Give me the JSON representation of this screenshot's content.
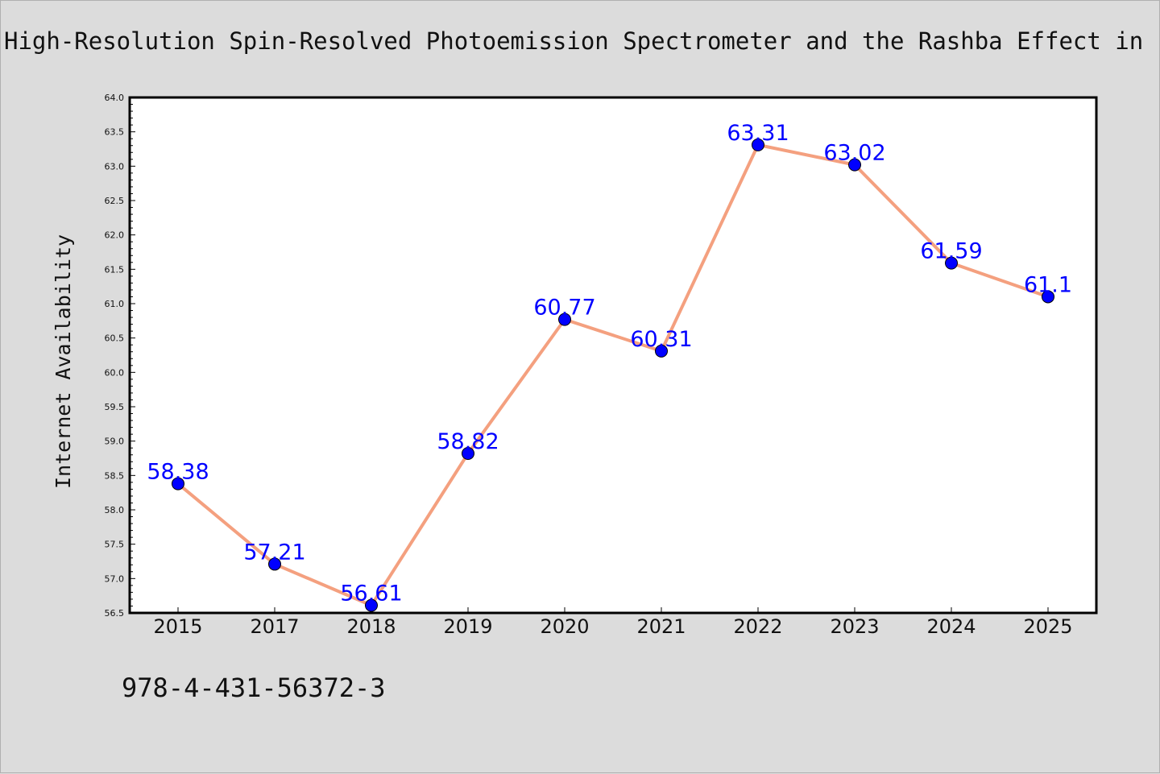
{
  "title": "High-Resolution Spin-Resolved Photoemission Spectrometer and the Rashba Effect in",
  "isbn": "978-4-431-56372-3",
  "colors": {
    "background": "#dcdcdc",
    "plot_background": "#ffffff",
    "line": "#f4a07f",
    "marker": "#0000ff",
    "data_label": "#0000ff"
  },
  "chart_data": {
    "type": "line",
    "title": "High-Resolution Spin-Resolved Photoemission Spectrometer and the Rashba Effect in",
    "xlabel": "",
    "ylabel": "Internet Availability",
    "categories": [
      "2015",
      "2017",
      "2018",
      "2019",
      "2020",
      "2021",
      "2022",
      "2023",
      "2024",
      "2025"
    ],
    "series": [
      {
        "values": [
          58.38,
          57.21,
          56.61,
          58.82,
          60.77,
          60.31,
          63.31,
          63.02,
          61.59,
          61.1
        ],
        "labels": [
          "58.38",
          "57.21",
          "56.61",
          "58.82",
          "60.77",
          "60.31",
          "63.31",
          "63.02",
          "61.59",
          "61.1"
        ]
      }
    ],
    "ylim": [
      56.5,
      64.0
    ],
    "yticks": [
      "56.5",
      "57.0",
      "57.5",
      "58.0",
      "58.5",
      "59.0",
      "59.5",
      "60.0",
      "60.5",
      "61.0",
      "61.5",
      "62.0",
      "62.5",
      "63.0",
      "63.5",
      "64.0"
    ],
    "grid": false,
    "legend": "none"
  }
}
